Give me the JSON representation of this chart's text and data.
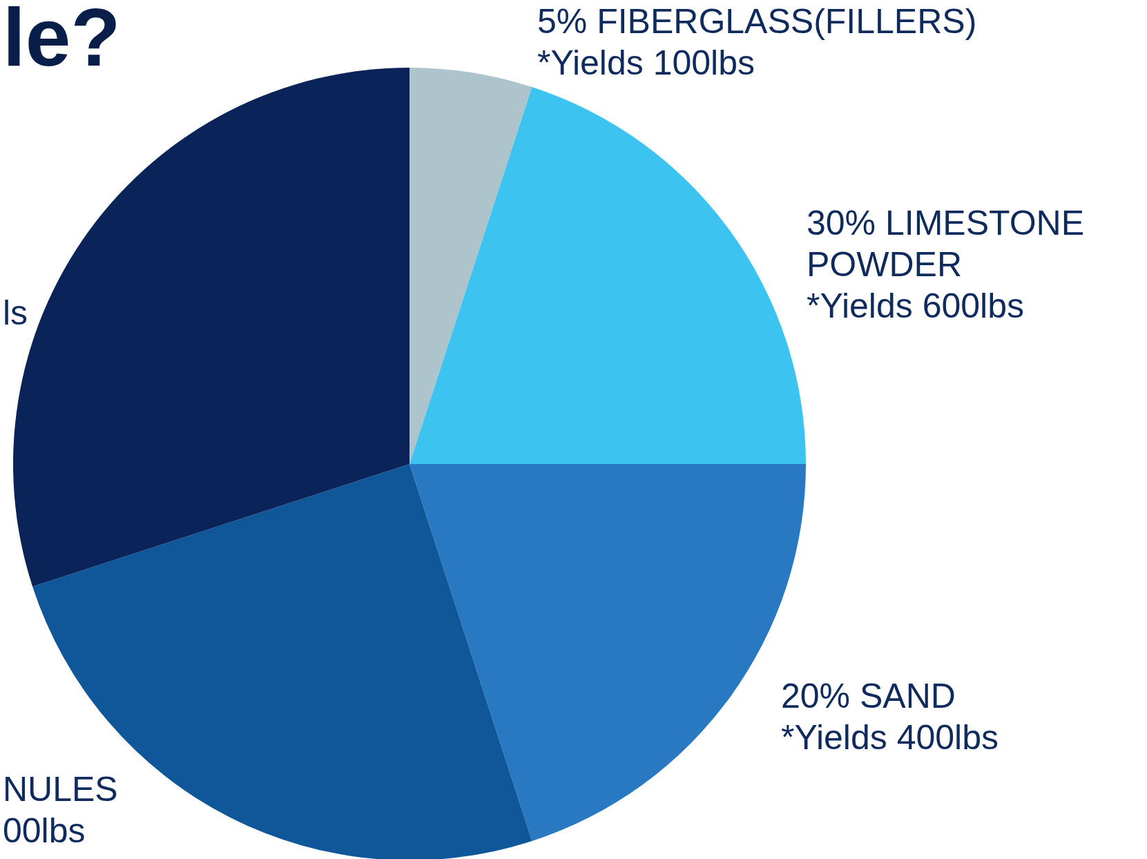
{
  "chart_data": {
    "type": "pie",
    "title": "le?",
    "categories": [
      null,
      null,
      null,
      null,
      null
    ],
    "values": [
      5,
      20,
      20,
      25,
      30
    ],
    "colors": [
      "#adc4cd",
      "#3cc3f0",
      "#2878c2",
      "#10579a",
      "#0a2359"
    ],
    "annotations": [
      "5% FIBERGLASS(FILLERS)\n*Yields 100lbs",
      "30% LIMESTONE\nPOWDER\n*Yields 600lbs",
      "20% SAND\n*Yields 400lbs",
      "NULES\n00lbs",
      "ls"
    ]
  }
}
